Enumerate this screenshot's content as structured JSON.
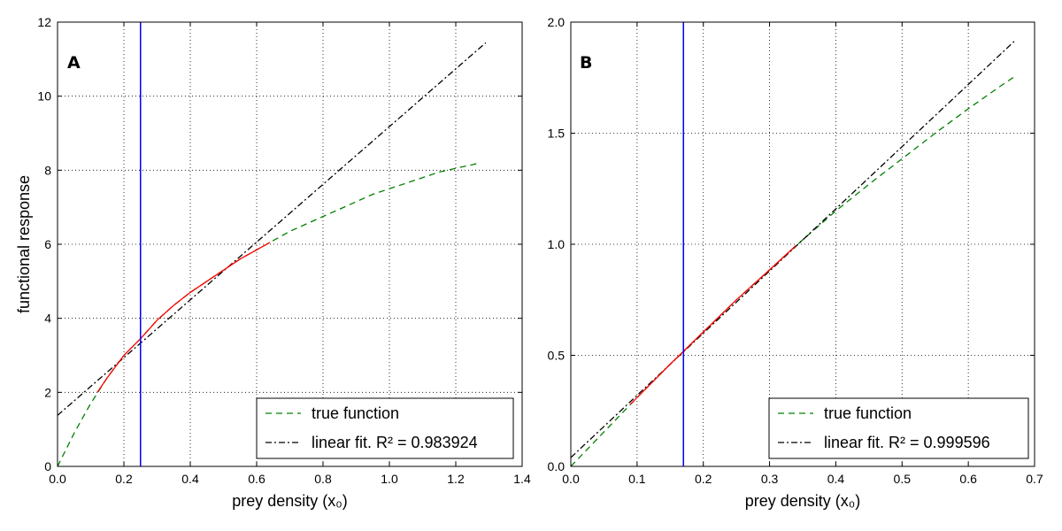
{
  "chart_data": [
    {
      "type": "line",
      "panel_label": "A",
      "xlabel": "prey density (x₀)",
      "ylabel": "functional response",
      "xlim": [
        0,
        1.4
      ],
      "ylim": [
        0,
        12
      ],
      "xticks": [
        0.0,
        0.2,
        0.4,
        0.6,
        0.8,
        1.0,
        1.2,
        1.4
      ],
      "xtick_labels": [
        "0.0",
        "0.2",
        "0.4",
        "0.6",
        "0.8",
        "1.0",
        "1.2",
        "1.4"
      ],
      "yticks": [
        0,
        2,
        4,
        6,
        8,
        10,
        12
      ],
      "ytick_labels": [
        "0",
        "2",
        "4",
        "6",
        "8",
        "10",
        "12"
      ],
      "grid": true,
      "legend_position": "bottom-right",
      "series": [
        {
          "name": "true function",
          "style": "dashed",
          "color": "#008000",
          "x": [
            0.0,
            0.05,
            0.1,
            0.15,
            0.2,
            0.25,
            0.3,
            0.35,
            0.4,
            0.45,
            0.5,
            0.55,
            0.6,
            0.65,
            0.7,
            0.75,
            0.8,
            0.85,
            0.9,
            0.95,
            1.0,
            1.05,
            1.1,
            1.15,
            1.2,
            1.25,
            1.27
          ],
          "y": [
            0.0,
            0.9,
            1.7,
            2.4,
            3.0,
            3.45,
            3.95,
            4.35,
            4.7,
            5.0,
            5.3,
            5.6,
            5.85,
            6.1,
            6.35,
            6.55,
            6.75,
            6.95,
            7.15,
            7.35,
            7.5,
            7.65,
            7.8,
            7.95,
            8.05,
            8.15,
            8.2
          ]
        },
        {
          "name": "linear fit.",
          "legend_r2": "R² = 0.983924",
          "style": "dashdot",
          "color": "#000000",
          "x": [
            0.0,
            1.29
          ],
          "y": [
            1.38,
            11.44
          ]
        },
        {
          "name": "",
          "style": "solid",
          "color": "#ff0000",
          "x": [
            0.12,
            0.15,
            0.2,
            0.25,
            0.3,
            0.35,
            0.4,
            0.45,
            0.5,
            0.55,
            0.6,
            0.64
          ],
          "y": [
            2.0,
            2.4,
            3.0,
            3.45,
            3.95,
            4.35,
            4.7,
            5.0,
            5.3,
            5.6,
            5.85,
            6.05
          ]
        }
      ],
      "vline": {
        "x": 0.25,
        "color": "#0000ff"
      }
    },
    {
      "type": "line",
      "panel_label": "B",
      "xlabel": "prey density (x₀)",
      "ylabel": "",
      "xlim": [
        0,
        0.7
      ],
      "ylim": [
        0,
        2.0
      ],
      "xticks": [
        0.0,
        0.1,
        0.2,
        0.3,
        0.4,
        0.5,
        0.6,
        0.7
      ],
      "xtick_labels": [
        "0.0",
        "0.1",
        "0.2",
        "0.3",
        "0.4",
        "0.5",
        "0.6",
        "0.7"
      ],
      "yticks": [
        0.0,
        0.5,
        1.0,
        1.5,
        2.0
      ],
      "ytick_labels": [
        "0.0",
        "0.5",
        "1.0",
        "1.5",
        "2.0"
      ],
      "grid": true,
      "legend_position": "bottom-right",
      "series": [
        {
          "name": "true function",
          "style": "dashed",
          "color": "#008000",
          "x": [
            0.0,
            0.05,
            0.1,
            0.15,
            0.2,
            0.25,
            0.3,
            0.35,
            0.4,
            0.45,
            0.5,
            0.55,
            0.6,
            0.65,
            0.67
          ],
          "y": [
            0.0,
            0.155,
            0.31,
            0.46,
            0.605,
            0.75,
            0.885,
            1.02,
            1.15,
            1.27,
            1.385,
            1.5,
            1.61,
            1.715,
            1.755
          ]
        },
        {
          "name": "linear fit.",
          "legend_r2": "R² = 0.999596",
          "style": "dashdot",
          "color": "#000000",
          "x": [
            0.0,
            0.67
          ],
          "y": [
            0.04,
            1.915
          ]
        },
        {
          "name": "",
          "style": "solid",
          "color": "#ff0000",
          "x": [
            0.09,
            0.1,
            0.15,
            0.2,
            0.25,
            0.3,
            0.34
          ],
          "y": [
            0.28,
            0.31,
            0.46,
            0.605,
            0.75,
            0.885,
            0.995
          ]
        }
      ],
      "vline": {
        "x": 0.17,
        "color": "#0000ff"
      }
    }
  ]
}
